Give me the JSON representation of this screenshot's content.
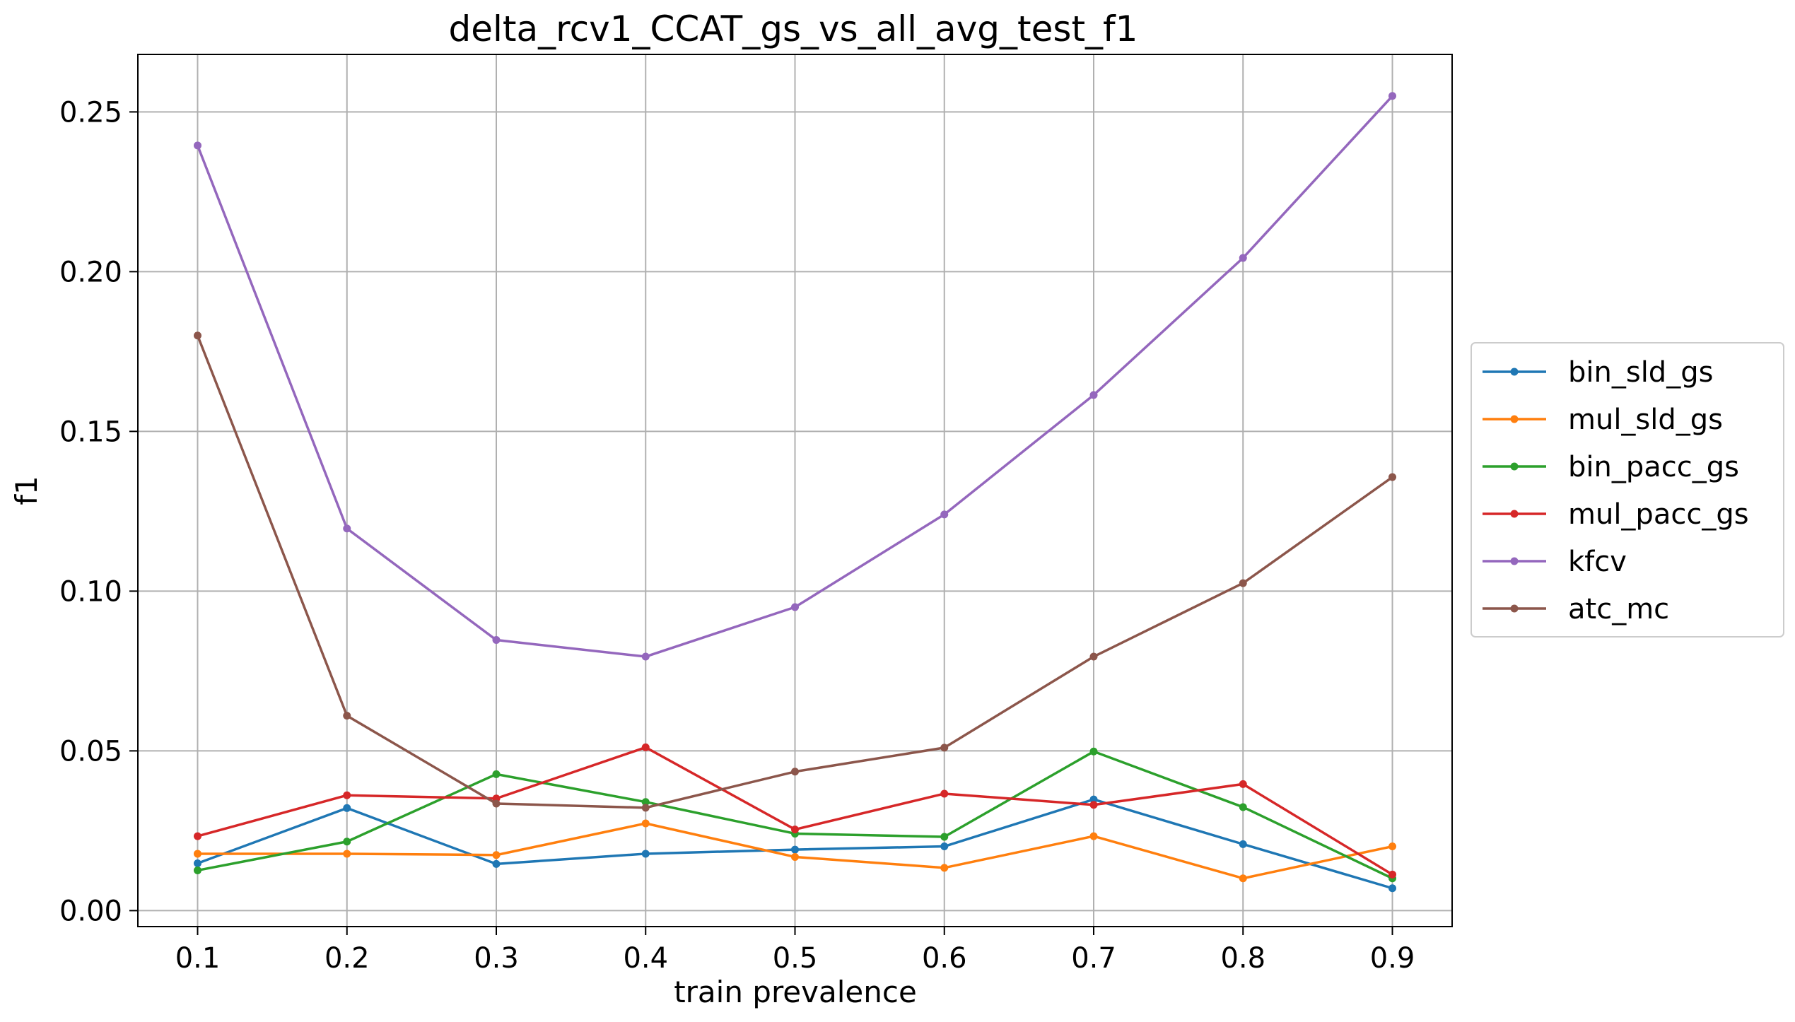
{
  "chart_data": {
    "type": "line",
    "title": "delta_rcv1_CCAT_gs_vs_all_avg_test_f1",
    "xlabel": "train prevalence",
    "ylabel": "f1",
    "x": [
      0.1,
      0.2,
      0.3,
      0.4,
      0.5,
      0.6,
      0.7,
      0.8,
      0.9
    ],
    "x_tick_labels": [
      "0.1",
      "0.2",
      "0.3",
      "0.4",
      "0.5",
      "0.6",
      "0.7",
      "0.8",
      "0.9"
    ],
    "y_ticks": [
      0.0,
      0.05,
      0.1,
      0.15,
      0.2,
      0.25
    ],
    "y_tick_labels": [
      "0.00",
      "0.05",
      "0.10",
      "0.15",
      "0.20",
      "0.25"
    ],
    "xlim": [
      0.06,
      0.94
    ],
    "ylim": [
      -0.005,
      0.268
    ],
    "grid": true,
    "legend_position": "center-right-outside",
    "series": [
      {
        "name": "bin_sld_gs",
        "color": "#1f77b4",
        "values": [
          0.0148,
          0.0321,
          0.0146,
          0.0178,
          0.0191,
          0.0201,
          0.0348,
          0.0208,
          0.007
        ]
      },
      {
        "name": "mul_sld_gs",
        "color": "#ff7f0e",
        "values": [
          0.0178,
          0.0178,
          0.0174,
          0.0273,
          0.0168,
          0.0134,
          0.0233,
          0.0101,
          0.0201
        ]
      },
      {
        "name": "bin_pacc_gs",
        "color": "#2ca02c",
        "values": [
          0.0126,
          0.0216,
          0.0427,
          0.034,
          0.0241,
          0.0231,
          0.0498,
          0.0324,
          0.0101
        ]
      },
      {
        "name": "mul_pacc_gs",
        "color": "#d62728",
        "values": [
          0.0233,
          0.0361,
          0.0351,
          0.0511,
          0.0254,
          0.0366,
          0.0331,
          0.0396,
          0.0113
        ]
      },
      {
        "name": "kfcv",
        "color": "#9467bd",
        "values": [
          0.2395,
          0.1196,
          0.0847,
          0.0795,
          0.095,
          0.124,
          0.1614,
          0.2043,
          0.255
        ]
      },
      {
        "name": "atc_mc",
        "color": "#8c564b",
        "values": [
          0.18,
          0.061,
          0.0335,
          0.0322,
          0.0435,
          0.051,
          0.0795,
          0.1025,
          0.1357
        ]
      }
    ]
  }
}
